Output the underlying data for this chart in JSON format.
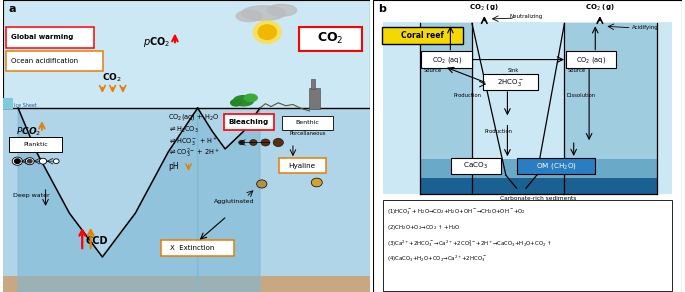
{
  "panel_a_label": "a",
  "panel_b_label": "b",
  "sky_color": "#cce8f4",
  "ocean_color": "#a8cfe0",
  "ocean_deep_color": "#7ab2cc",
  "sediment_color": "#c8a882",
  "global_warming_text": "Global warming",
  "ocean_acid_text": "Ocean acidification",
  "co2_box_text": "CO$_2$",
  "pco2_atm_text": "$p$CO$_2$",
  "co2_label_text": "CO$_2$",
  "pco2_ocean_text": "$P$CO$_2$",
  "planktic_text": "Planktic",
  "deepwater_text": "Deep water",
  "ccd_text": "CCD",
  "bleaching_text": "Bleaching",
  "benthic_text": "Benthic",
  "porcel_text": "Porcellaneous",
  "hyaline_text": "Hyaline",
  "agglut_text": "Agglutinated",
  "extinction_text": "Extinction",
  "co2aq_rxn_text": "CO$_2$(aq) + H$_2$O",
  "rxn1_text": "$\\rightleftharpoons$H$_2$CO$_3$",
  "rxn2_text": "$\\rightleftharpoons$HCO$_3^-$ + H$^+$",
  "rxn3_text": "$\\rightleftharpoons$CO$_3^{2-}$ + 2H$^+$",
  "ph_text": "pH$\\downarrow$",
  "coral_reef_text": "Coral reef",
  "co2g_text": "CO$_2$ (g)",
  "neutralizing_text": "Neutralizing",
  "acidifying_text": "Acidifying",
  "co2aq1_text": "CO$_2$ (aq)",
  "co2aq2_text": "CO$_2$ (aq)",
  "source1_text": "Source",
  "sink_text": "Sink",
  "source2_text": "Source",
  "hco3_text": "2HCO$_3^-$",
  "production1_text": "Production",
  "dissolution_text": "Dissolution",
  "production2_text": "Production",
  "caco3_text": "CaCO$_3$",
  "om_text": "OM (CH$_2$O)",
  "carb_sed_text": "Carbonate-rich sediments",
  "eq1": "(1)HCO$_3^-$+ H$_2$O→CO$_2$+H$_2$O+OH$^-$→CH$_2$O+OH$^-$+O$_2$",
  "eq2": "(2)CH$_2$O+O$_2$→CO$_2$ ↑ +H$_2$O",
  "eq3": "(3)Ca$^{2+}$+2HCO$_3^-$→Ca$^{2+}$+2CO$_3^{2-}$+2H$^+$→CaCO$_3$+H$_2$O+CO$_2$ ↑",
  "eq4": "(4)CaCO$_3$+H$_2$O+CO$_2$→Ca$^{2+}$+2HCO$_3^-$"
}
